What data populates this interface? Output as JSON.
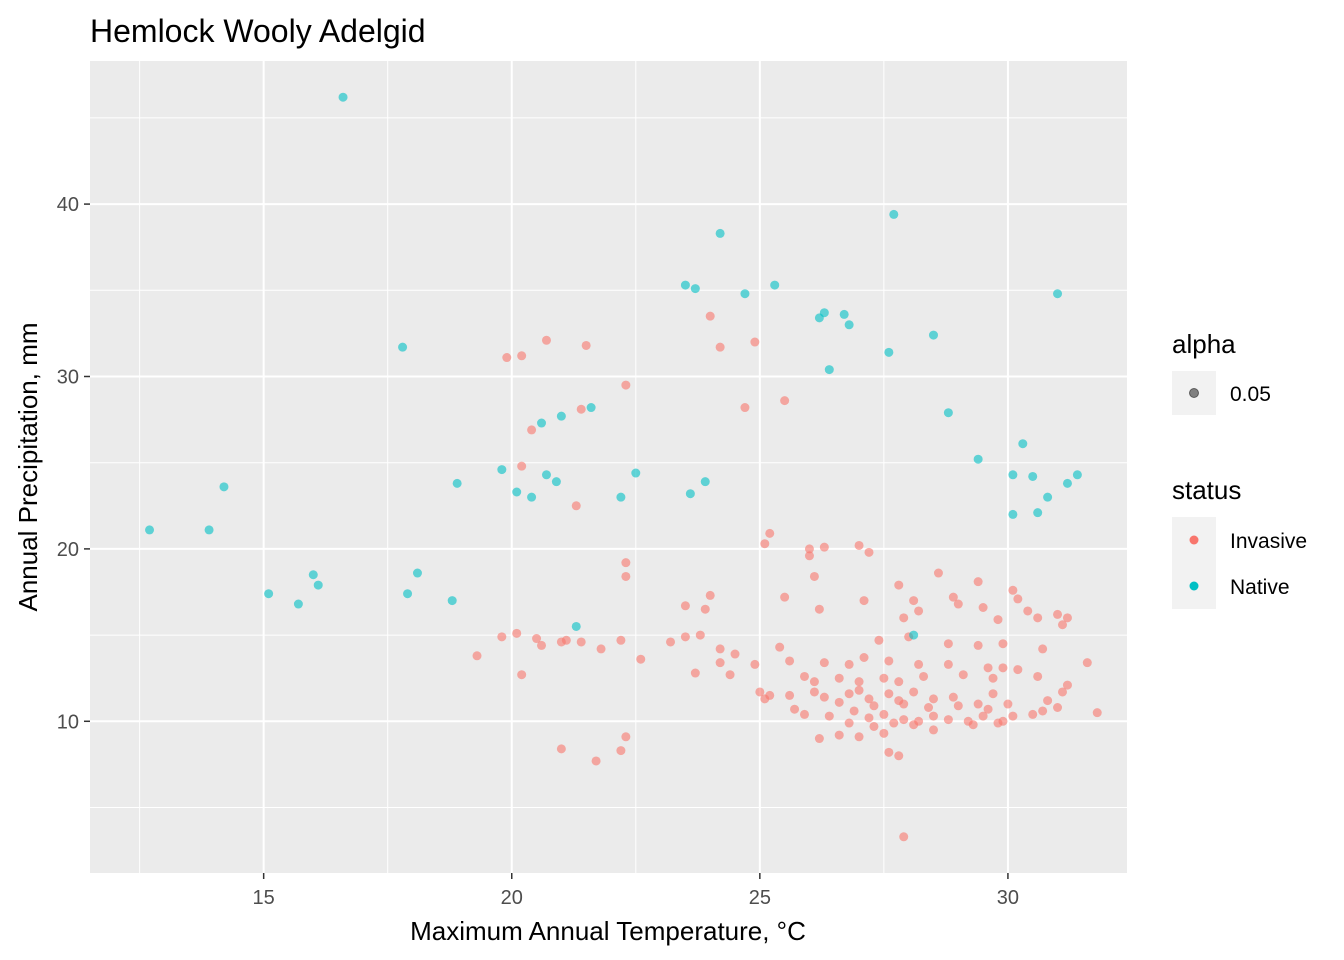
{
  "chart_data": {
    "type": "scatter",
    "title": "Hemlock Wooly Adelgid",
    "xlabel": "Maximum Annual Temperature, °C",
    "ylabel": "Annual Precipitation, mm",
    "xlim": [
      11.5,
      32.4
    ],
    "ylim": [
      1.2,
      48.3
    ],
    "xticks": [
      15,
      20,
      25,
      30
    ],
    "yticks": [
      10,
      20,
      30,
      40
    ],
    "grid": true,
    "point_opacity": 0.6,
    "legend": {
      "placement": "right",
      "alpha": {
        "title": "alpha",
        "entries": [
          "0.05"
        ],
        "color": "#333333"
      },
      "status": {
        "title": "status",
        "entries": [
          "Invasive",
          "Native"
        ]
      }
    },
    "series": [
      {
        "name": "Invasive",
        "color": "#F8766D",
        "points": [
          [
            20.7,
            32.1
          ],
          [
            24.9,
            32.0
          ],
          [
            21.5,
            31.8
          ],
          [
            24.2,
            31.7
          ],
          [
            20.2,
            31.2
          ],
          [
            19.9,
            31.1
          ],
          [
            24.0,
            33.5
          ],
          [
            22.3,
            29.5
          ],
          [
            25.5,
            28.6
          ],
          [
            24.7,
            28.2
          ],
          [
            21.4,
            28.1
          ],
          [
            20.4,
            26.9
          ],
          [
            20.2,
            24.8
          ],
          [
            21.3,
            22.5
          ],
          [
            25.1,
            20.3
          ],
          [
            25.2,
            20.9
          ],
          [
            26.3,
            20.1
          ],
          [
            27.0,
            20.2
          ],
          [
            27.2,
            19.8
          ],
          [
            26.0,
            20.0
          ],
          [
            26.0,
            19.6
          ],
          [
            22.3,
            19.2
          ],
          [
            22.3,
            18.4
          ],
          [
            26.1,
            18.4
          ],
          [
            28.6,
            18.6
          ],
          [
            27.8,
            17.9
          ],
          [
            29.4,
            18.1
          ],
          [
            30.1,
            17.6
          ],
          [
            24.0,
            17.3
          ],
          [
            25.5,
            17.2
          ],
          [
            27.1,
            17.0
          ],
          [
            28.1,
            17.0
          ],
          [
            28.9,
            17.2
          ],
          [
            30.2,
            17.1
          ],
          [
            23.5,
            16.7
          ],
          [
            23.9,
            16.5
          ],
          [
            26.2,
            16.5
          ],
          [
            27.9,
            16.0
          ],
          [
            28.2,
            16.4
          ],
          [
            29.0,
            16.8
          ],
          [
            29.5,
            16.6
          ],
          [
            30.4,
            16.4
          ],
          [
            30.6,
            16.0
          ],
          [
            31.0,
            16.2
          ],
          [
            31.2,
            16.0
          ],
          [
            31.1,
            15.6
          ],
          [
            29.8,
            15.9
          ],
          [
            23.8,
            15.0
          ],
          [
            23.5,
            14.9
          ],
          [
            20.1,
            15.1
          ],
          [
            20.5,
            14.8
          ],
          [
            19.8,
            14.9
          ],
          [
            21.1,
            14.7
          ],
          [
            21.4,
            14.6
          ],
          [
            22.2,
            14.7
          ],
          [
            23.2,
            14.6
          ],
          [
            24.2,
            14.2
          ],
          [
            25.4,
            14.3
          ],
          [
            27.4,
            14.7
          ],
          [
            28.0,
            14.9
          ],
          [
            28.8,
            14.5
          ],
          [
            29.4,
            14.4
          ],
          [
            29.9,
            14.5
          ],
          [
            30.7,
            14.2
          ],
          [
            20.6,
            14.4
          ],
          [
            21.0,
            14.6
          ],
          [
            21.8,
            14.2
          ],
          [
            19.3,
            13.8
          ],
          [
            22.6,
            13.6
          ],
          [
            23.7,
            12.8
          ],
          [
            24.2,
            13.4
          ],
          [
            24.5,
            13.9
          ],
          [
            24.9,
            13.3
          ],
          [
            25.6,
            13.5
          ],
          [
            26.3,
            13.4
          ],
          [
            26.8,
            13.3
          ],
          [
            27.1,
            13.7
          ],
          [
            27.6,
            13.5
          ],
          [
            28.2,
            13.3
          ],
          [
            28.8,
            13.3
          ],
          [
            29.6,
            13.1
          ],
          [
            29.9,
            13.1
          ],
          [
            30.2,
            13.0
          ],
          [
            31.6,
            13.4
          ],
          [
            20.2,
            12.7
          ],
          [
            24.4,
            12.7
          ],
          [
            25.9,
            12.6
          ],
          [
            26.1,
            12.3
          ],
          [
            26.6,
            12.5
          ],
          [
            27.0,
            12.3
          ],
          [
            27.5,
            12.5
          ],
          [
            27.8,
            12.3
          ],
          [
            28.3,
            12.6
          ],
          [
            29.1,
            12.7
          ],
          [
            29.7,
            12.5
          ],
          [
            30.6,
            12.6
          ],
          [
            25.0,
            11.7
          ],
          [
            25.2,
            11.5
          ],
          [
            25.6,
            11.5
          ],
          [
            26.3,
            11.4
          ],
          [
            26.8,
            11.6
          ],
          [
            27.0,
            11.8
          ],
          [
            27.2,
            11.3
          ],
          [
            27.6,
            11.6
          ],
          [
            27.8,
            11.2
          ],
          [
            28.1,
            11.7
          ],
          [
            28.5,
            11.3
          ],
          [
            28.9,
            11.4
          ],
          [
            29.4,
            11.0
          ],
          [
            29.7,
            11.6
          ],
          [
            30.0,
            11.0
          ],
          [
            30.8,
            11.2
          ],
          [
            31.1,
            11.7
          ],
          [
            31.2,
            12.1
          ],
          [
            25.1,
            11.3
          ],
          [
            26.1,
            11.7
          ],
          [
            26.6,
            11.1
          ],
          [
            27.3,
            10.9
          ],
          [
            27.9,
            11.0
          ],
          [
            28.4,
            10.8
          ],
          [
            29.0,
            10.9
          ],
          [
            29.6,
            10.7
          ],
          [
            25.7,
            10.7
          ],
          [
            25.9,
            10.4
          ],
          [
            26.4,
            10.3
          ],
          [
            26.9,
            10.6
          ],
          [
            27.2,
            10.2
          ],
          [
            27.5,
            10.4
          ],
          [
            27.9,
            10.1
          ],
          [
            28.2,
            10.0
          ],
          [
            28.5,
            10.3
          ],
          [
            28.8,
            10.1
          ],
          [
            29.2,
            10.0
          ],
          [
            29.5,
            10.3
          ],
          [
            29.9,
            10.0
          ],
          [
            30.1,
            10.3
          ],
          [
            30.5,
            10.4
          ],
          [
            30.7,
            10.6
          ],
          [
            31.0,
            10.8
          ],
          [
            31.8,
            10.5
          ],
          [
            26.8,
            9.9
          ],
          [
            27.3,
            9.7
          ],
          [
            27.7,
            9.9
          ],
          [
            28.1,
            9.8
          ],
          [
            29.3,
            9.8
          ],
          [
            29.8,
            9.9
          ],
          [
            26.6,
            9.2
          ],
          [
            27.0,
            9.1
          ],
          [
            26.2,
            9.0
          ],
          [
            27.5,
            9.3
          ],
          [
            28.5,
            9.5
          ],
          [
            22.3,
            9.1
          ],
          [
            21.0,
            8.4
          ],
          [
            22.2,
            8.3
          ],
          [
            21.7,
            7.7
          ],
          [
            27.6,
            8.2
          ],
          [
            27.8,
            8.0
          ],
          [
            27.9,
            3.3
          ]
        ]
      },
      {
        "name": "Native",
        "color": "#00BFC4",
        "points": [
          [
            16.6,
            46.2
          ],
          [
            27.7,
            39.4
          ],
          [
            24.2,
            38.3
          ],
          [
            23.5,
            35.3
          ],
          [
            23.7,
            35.1
          ],
          [
            25.3,
            35.3
          ],
          [
            24.7,
            34.8
          ],
          [
            31.0,
            34.8
          ],
          [
            26.2,
            33.4
          ],
          [
            26.3,
            33.7
          ],
          [
            26.7,
            33.6
          ],
          [
            26.8,
            33.0
          ],
          [
            28.5,
            32.4
          ],
          [
            17.8,
            31.7
          ],
          [
            27.6,
            31.4
          ],
          [
            26.4,
            30.4
          ],
          [
            21.6,
            28.2
          ],
          [
            28.8,
            27.9
          ],
          [
            21.0,
            27.7
          ],
          [
            20.6,
            27.3
          ],
          [
            30.3,
            26.1
          ],
          [
            29.4,
            25.2
          ],
          [
            19.8,
            24.6
          ],
          [
            22.5,
            24.4
          ],
          [
            20.7,
            24.3
          ],
          [
            30.1,
            24.3
          ],
          [
            30.5,
            24.2
          ],
          [
            31.4,
            24.3
          ],
          [
            14.2,
            23.6
          ],
          [
            18.9,
            23.8
          ],
          [
            20.9,
            23.9
          ],
          [
            23.9,
            23.9
          ],
          [
            20.1,
            23.3
          ],
          [
            20.4,
            23.0
          ],
          [
            22.2,
            23.0
          ],
          [
            23.6,
            23.2
          ],
          [
            30.8,
            23.0
          ],
          [
            31.2,
            23.8
          ],
          [
            30.1,
            22.0
          ],
          [
            30.6,
            22.1
          ],
          [
            12.7,
            21.1
          ],
          [
            13.9,
            21.1
          ],
          [
            16.0,
            18.5
          ],
          [
            16.1,
            17.9
          ],
          [
            18.1,
            18.6
          ],
          [
            15.1,
            17.4
          ],
          [
            17.9,
            17.4
          ],
          [
            15.7,
            16.8
          ],
          [
            18.8,
            17.0
          ],
          [
            21.3,
            15.5
          ],
          [
            28.1,
            15.0
          ]
        ]
      }
    ]
  }
}
